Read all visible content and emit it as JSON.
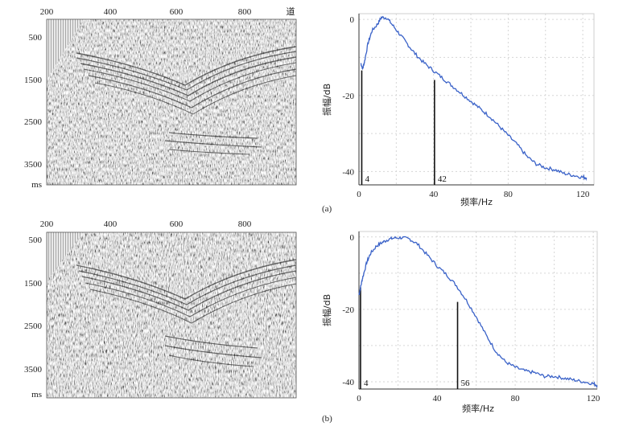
{
  "seismic_panels": [
    {
      "trace_ticks": [
        "200",
        "400",
        "600",
        "800"
      ],
      "trace_unit": "道",
      "time_ticks": [
        "500",
        "1500",
        "2500",
        "3500"
      ],
      "time_unit": "ms"
    },
    {
      "trace_ticks": [
        "200",
        "400",
        "600",
        "800"
      ],
      "trace_unit": "",
      "time_ticks": [
        "500",
        "1500",
        "2500",
        "3500"
      ],
      "time_unit": "ms"
    }
  ],
  "captions": [
    "(a)",
    "(b)"
  ],
  "chart_data": [
    {
      "type": "line",
      "panel": "(a)",
      "xlabel": "频率/Hz",
      "ylabel": "振幅/dB",
      "xticks": [
        0,
        40,
        80,
        120
      ],
      "yticks": [
        0,
        -20,
        -40
      ],
      "xlim": [
        0,
        126
      ],
      "ylim": [
        -43.5,
        1.5
      ],
      "grid": true,
      "series": [
        {
          "x": [
            1,
            2,
            3,
            5,
            7,
            10,
            12,
            15,
            18,
            22,
            26,
            30,
            35,
            40,
            45,
            50,
            55,
            60,
            65,
            70,
            75,
            80,
            85,
            90,
            95,
            100,
            105,
            110,
            115,
            120,
            122
          ],
          "y": [
            -11.5,
            -13,
            -11,
            -6,
            -3,
            -1.2,
            0.5,
            0.4,
            -1.5,
            -4,
            -6.5,
            -9,
            -11.5,
            -13.5,
            -15.5,
            -17.5,
            -19.5,
            -21.5,
            -23.5,
            -25.5,
            -28,
            -30.5,
            -33,
            -36,
            -38,
            -39,
            -39.5,
            -40.5,
            -41,
            -41.5,
            -41.6
          ]
        }
      ],
      "markers": [
        {
          "x": 1.5,
          "label": "4"
        },
        {
          "x": 40.5,
          "label": "42"
        }
      ]
    },
    {
      "type": "line",
      "panel": "(b)",
      "xlabel": "频率/Hz",
      "ylabel": "振幅/dB",
      "xticks": [
        0,
        40,
        80,
        120
      ],
      "yticks": [
        0,
        -20,
        -40
      ],
      "xlim": [
        0,
        122
      ],
      "ylim": [
        -42,
        1.5
      ],
      "grid": true,
      "series": [
        {
          "x": [
            0,
            1,
            2,
            4,
            6,
            9,
            12,
            15,
            18,
            22,
            26,
            30,
            35,
            40,
            45,
            50,
            55,
            60,
            65,
            70,
            75,
            80,
            85,
            90,
            95,
            100,
            105,
            110,
            115,
            120,
            122
          ],
          "y": [
            -16,
            -13.5,
            -11,
            -7,
            -4.5,
            -2.5,
            -1.5,
            -0.7,
            -0.3,
            -0.2,
            -0.6,
            -2,
            -5,
            -8,
            -10.5,
            -13.5,
            -17.5,
            -22,
            -27,
            -31.5,
            -34.5,
            -36,
            -37,
            -37.5,
            -38.5,
            -38.5,
            -39,
            -39.5,
            -40,
            -40.5,
            -41
          ]
        }
      ],
      "markers": [
        {
          "x": 0.8,
          "label": "4"
        },
        {
          "x": 50.5,
          "label": "56"
        }
      ]
    }
  ]
}
